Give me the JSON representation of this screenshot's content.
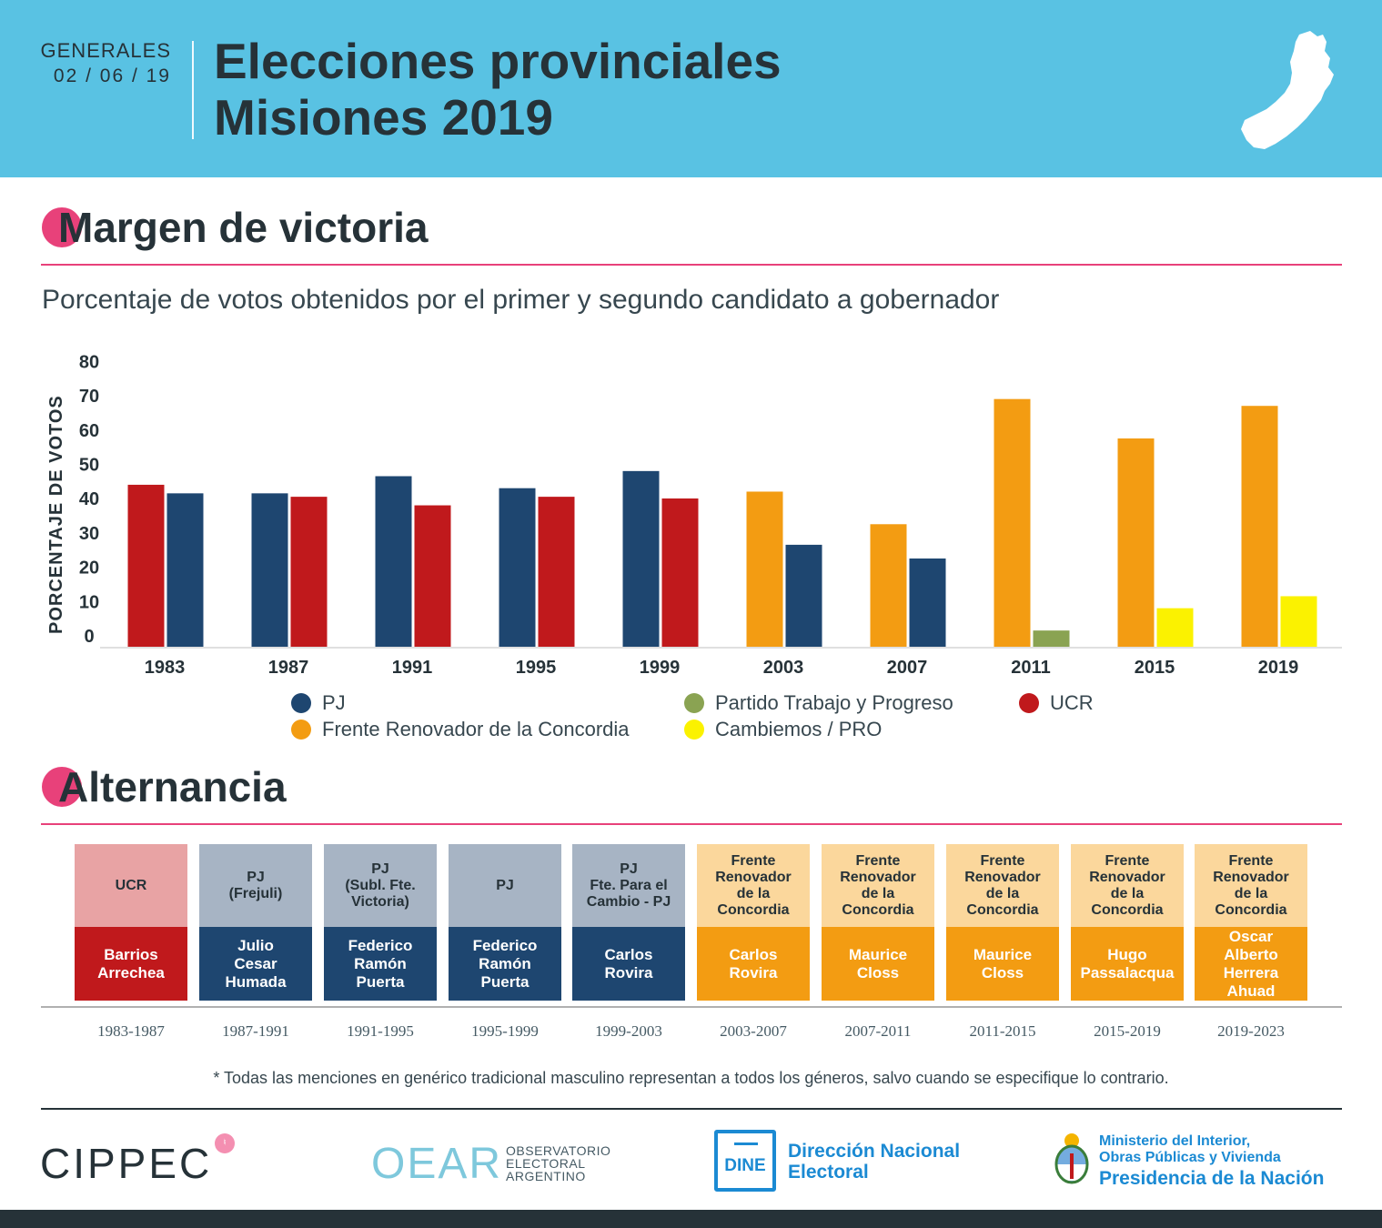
{
  "header": {
    "kicker": "GENERALES",
    "date": "02 / 06 / 19",
    "title_line1": "Elecciones provinciales",
    "title_line2": "Misiones 2019"
  },
  "section_margin": {
    "title": "Margen de victoria"
  },
  "subtitle": "Porcentaje de votos obtenidos por el primer y segundo candidato a gobernador",
  "colors": {
    "PJ": "#1e4670",
    "UCR": "#c0191c",
    "FRC": "#f39c12",
    "PTP": "#8aa352",
    "PRO": "#fbf200",
    "accent": "#e8417a",
    "header_bg": "#59c2e3"
  },
  "chart_data": {
    "type": "bar",
    "ylabel": "PORCENTAJE DE VOTOS",
    "ylim": [
      0,
      80
    ],
    "yticks": [
      0,
      10,
      20,
      30,
      40,
      50,
      60,
      70,
      80
    ],
    "categories": [
      "1983",
      "1987",
      "1991",
      "1995",
      "1999",
      "2003",
      "2007",
      "2011",
      "2015",
      "2019"
    ],
    "groups": [
      {
        "year": "1983",
        "bars": [
          {
            "party": "UCR",
            "value": 47.5
          },
          {
            "party": "PJ",
            "value": 45
          }
        ]
      },
      {
        "year": "1987",
        "bars": [
          {
            "party": "PJ",
            "value": 45
          },
          {
            "party": "UCR",
            "value": 44
          }
        ]
      },
      {
        "year": "1991",
        "bars": [
          {
            "party": "PJ",
            "value": 50
          },
          {
            "party": "UCR",
            "value": 41.5
          }
        ]
      },
      {
        "year": "1995",
        "bars": [
          {
            "party": "PJ",
            "value": 46.5
          },
          {
            "party": "UCR",
            "value": 44
          }
        ]
      },
      {
        "year": "1999",
        "bars": [
          {
            "party": "PJ",
            "value": 51.5
          },
          {
            "party": "UCR",
            "value": 43.5
          }
        ]
      },
      {
        "year": "2003",
        "bars": [
          {
            "party": "FRC",
            "value": 45.5
          },
          {
            "party": "PJ",
            "value": 30
          }
        ]
      },
      {
        "year": "2007",
        "bars": [
          {
            "party": "FRC",
            "value": 36
          },
          {
            "party": "PJ",
            "value": 26
          }
        ]
      },
      {
        "year": "2011",
        "bars": [
          {
            "party": "FRC",
            "value": 72.5
          },
          {
            "party": "PTP",
            "value": 5
          }
        ]
      },
      {
        "year": "2015",
        "bars": [
          {
            "party": "FRC",
            "value": 61
          },
          {
            "party": "PRO",
            "value": 11.5
          }
        ]
      },
      {
        "year": "2019",
        "bars": [
          {
            "party": "FRC",
            "value": 70.5
          },
          {
            "party": "PRO",
            "value": 15
          }
        ]
      }
    ],
    "legend": [
      {
        "party": "PJ",
        "label": "PJ"
      },
      {
        "party": "PTP",
        "label": "Partido Trabajo y Progreso"
      },
      {
        "party": "UCR",
        "label": "UCR"
      },
      {
        "party": "FRC",
        "label": "Frente Renovador de la Concordia"
      },
      {
        "party": "PRO",
        "label": "Cambiemos / PRO"
      }
    ]
  },
  "section_alternancia": {
    "title": "Alternancia"
  },
  "terms": [
    {
      "party": "UCR",
      "person": "Barrios\nArrechea",
      "period": "1983-1987",
      "kind": "UCR"
    },
    {
      "party": "PJ\n(Frejuli)",
      "person": "Julio\nCesar\nHumada",
      "period": "1987-1991",
      "kind": "PJ"
    },
    {
      "party": "PJ\n(Subl. Fte.\nVictoria)",
      "person": "Federico\nRamón\nPuerta",
      "period": "1991-1995",
      "kind": "PJ"
    },
    {
      "party": "PJ",
      "person": "Federico\nRamón\nPuerta",
      "period": "1995-1999",
      "kind": "PJ"
    },
    {
      "party": "PJ\nFte. Para el\nCambio - PJ",
      "person": "Carlos\nRovira",
      "period": "1999-2003",
      "kind": "PJ"
    },
    {
      "party": "Frente\nRenovador\nde la\nConcordia",
      "person": "Carlos\nRovira",
      "period": "2003-2007",
      "kind": "FRC"
    },
    {
      "party": "Frente\nRenovador\nde la\nConcordia",
      "person": "Maurice\nCloss",
      "period": "2007-2011",
      "kind": "FRC"
    },
    {
      "party": "Frente\nRenovador\nde la\nConcordia",
      "person": "Maurice\nCloss",
      "period": "2011-2015",
      "kind": "FRC"
    },
    {
      "party": "Frente\nRenovador\nde la\nConcordia",
      "person": "Hugo\nPassalacqua",
      "period": "2015-2019",
      "kind": "FRC"
    },
    {
      "party": "Frente\nRenovador\nde la\nConcordia",
      "person": "Oscar\nAlberto\nHerrera\nAhuad",
      "period": "2019-2023",
      "kind": "FRC"
    }
  ],
  "term_colors": {
    "UCR": {
      "top": "#e8a3a4",
      "bottom": "#c0191c"
    },
    "PJ": {
      "top": "#a7b4c4",
      "bottom": "#1e4670"
    },
    "FRC": {
      "top": "#fbd79c",
      "bottom": "#f39c12"
    }
  },
  "footnote": "* Todas las menciones en genérico tradicional masculino representan a todos los géneros, salvo cuando se especifique lo contrario.",
  "footer": {
    "cippec": "CIPPEC",
    "oear_big": "OEAR",
    "oear_l1": "OBSERVATORIO",
    "oear_l2": "ELECTORAL",
    "oear_l3": "ARGENTINO",
    "dine_box": "DINE",
    "dine_l1": "Dirección Nacional",
    "dine_l2": "Electoral",
    "min_l1": "Ministerio del Interior,",
    "min_l2": "Obras Públicas y Vivienda",
    "min_l3": "Presidencia de la Nación"
  }
}
